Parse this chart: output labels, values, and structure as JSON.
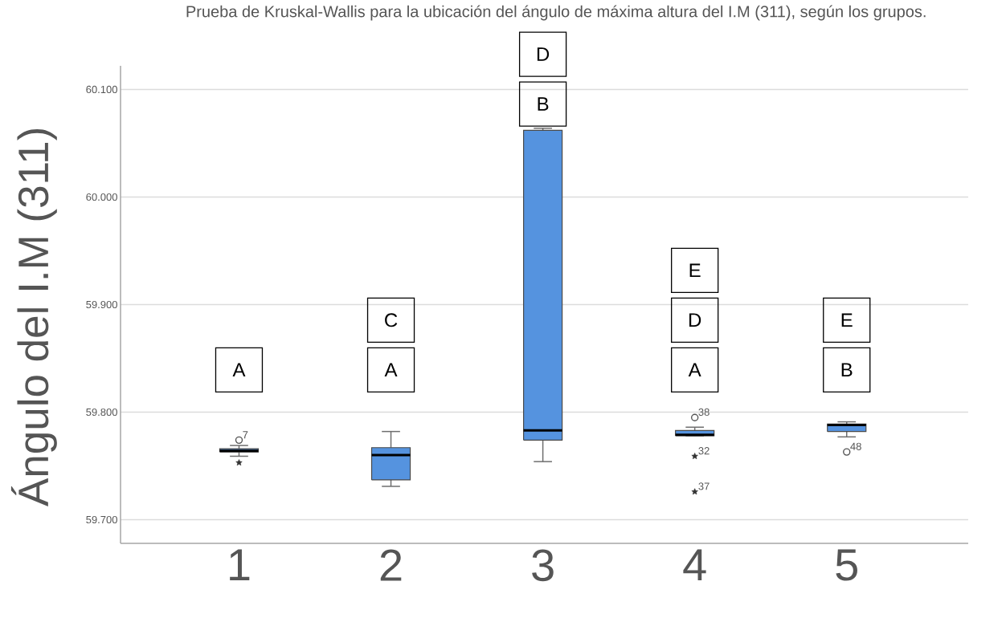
{
  "chart_data": {
    "type": "box",
    "title": "Prueba de Kruskal-Wallis para la ubicación del ángulo de máxima altura del I.M (311), según los grupos.",
    "ylabel": "Ángulo del I.M (311)",
    "categories": [
      "1",
      "2",
      "3",
      "4",
      "5"
    ],
    "color": "#5593df",
    "grid": "y",
    "ylim": [
      59.678,
      60.122
    ],
    "yticks": [
      {
        "value": 59.7,
        "label": "59.700"
      },
      {
        "value": 59.8,
        "label": "59.800"
      },
      {
        "value": 59.9,
        "label": "59.900"
      },
      {
        "value": 60.0,
        "label": "60.000"
      },
      {
        "value": 60.1,
        "label": "60.100"
      }
    ],
    "boxes": [
      {
        "low": 59.759,
        "q1": 59.763,
        "median": 59.764,
        "q3": 59.766,
        "high": 59.769
      },
      {
        "low": 59.731,
        "q1": 59.737,
        "median": 59.76,
        "q3": 59.767,
        "high": 59.782
      },
      {
        "low": 59.754,
        "q1": 59.774,
        "median": 59.783,
        "q3": 60.062,
        "high": 60.064
      },
      {
        "low": 59.778,
        "q1": 59.778,
        "median": 59.779,
        "q3": 59.783,
        "high": 59.786
      },
      {
        "low": 59.777,
        "q1": 59.782,
        "median": 59.788,
        "q3": 59.789,
        "high": 59.791
      }
    ],
    "series": [
      {
        "type": "scatter",
        "marker": "circle",
        "color": "#555555",
        "x": [
          "1",
          "4",
          "5"
        ],
        "values": [
          59.774,
          59.795,
          59.763
        ]
      },
      {
        "type": "scatter",
        "marker": "star",
        "color": "#333333",
        "x": [
          "1",
          "4",
          "4"
        ],
        "values": [
          59.753,
          59.759,
          59.726
        ]
      }
    ],
    "annotations": [
      "A",
      "A",
      "C",
      "B",
      "D",
      "A",
      "D",
      "E",
      "B",
      "E",
      {
        "text": "7",
        "x": "1",
        "y": 59.774
      },
      {
        "text": "38",
        "x": "4",
        "y": 59.795
      },
      {
        "text": "32",
        "x": "4",
        "y": 59.759
      },
      {
        "text": "37",
        "x": "4",
        "y": 59.726
      },
      {
        "text": "48",
        "x": "5",
        "y": 59.763
      }
    ]
  }
}
